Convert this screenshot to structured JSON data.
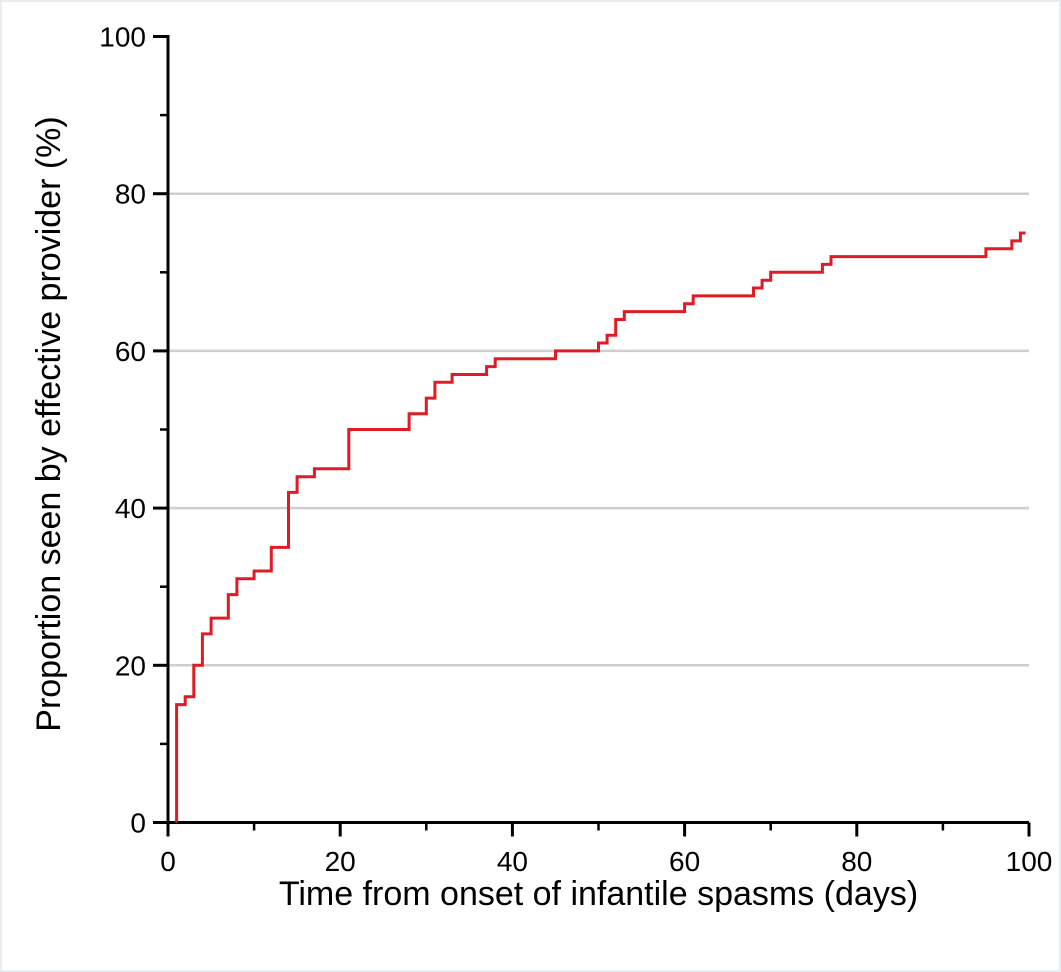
{
  "page": {
    "background": "#ffffff",
    "border_color": "#e8edf2"
  },
  "chart_data": {
    "type": "line",
    "line_style": "step-after",
    "description": "Cumulative step curve (Kaplan-Meier style) of proportion of patients seen by an effective provider over time from onset of infantile spasms",
    "title": "",
    "xlabel": "Time from onset of infantile spasms (days)",
    "ylabel": "Proportion seen by effective provider (%)",
    "xlim": [
      0,
      100
    ],
    "ylim": [
      0,
      100
    ],
    "x_major_ticks": [
      0,
      20,
      40,
      60,
      80,
      100
    ],
    "x_minor_ticks": [
      10,
      30,
      50,
      70,
      90
    ],
    "y_major_ticks": [
      0,
      20,
      40,
      60,
      80,
      100
    ],
    "y_minor_ticks": [
      10,
      30,
      50,
      70,
      90
    ],
    "y_gridlines": [
      20,
      40,
      60,
      80
    ],
    "grid": "horizontal major gridlines only",
    "legend_position": "none",
    "axis_color": "#000000",
    "grid_color": "#cfcfcf",
    "tick_direction": "out",
    "series": [
      {
        "name": "proportion-seen-by-effective-provider",
        "color": "#e11b23",
        "line_width": 3,
        "step_points": [
          [
            1,
            0
          ],
          [
            1,
            15
          ],
          [
            2,
            16
          ],
          [
            3,
            20
          ],
          [
            4,
            24
          ],
          [
            5,
            26
          ],
          [
            7,
            29
          ],
          [
            8,
            31
          ],
          [
            10,
            32
          ],
          [
            12,
            35
          ],
          [
            14,
            42
          ],
          [
            15,
            44
          ],
          [
            17,
            45
          ],
          [
            21,
            50
          ],
          [
            28,
            52
          ],
          [
            30,
            54
          ],
          [
            31,
            56
          ],
          [
            33,
            57
          ],
          [
            37,
            58
          ],
          [
            38,
            59
          ],
          [
            45,
            60
          ],
          [
            50,
            61
          ],
          [
            51,
            62
          ],
          [
            52,
            64
          ],
          [
            53,
            65
          ],
          [
            60,
            66
          ],
          [
            61,
            67
          ],
          [
            68,
            68
          ],
          [
            69,
            69
          ],
          [
            70,
            70
          ],
          [
            76,
            71
          ],
          [
            77,
            72
          ],
          [
            95,
            73
          ],
          [
            98,
            74
          ],
          [
            99,
            75
          ],
          [
            99.6,
            75
          ]
        ]
      }
    ]
  }
}
